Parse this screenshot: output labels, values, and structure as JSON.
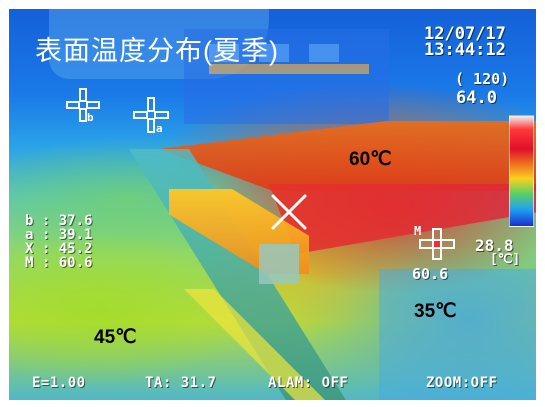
{
  "title": "表面温度分布(夏季)",
  "date": "12/07/17",
  "time": "13:44:12",
  "emissivity_scale": "( 120)",
  "max_temp": "64.0",
  "min_temp": "28.8",
  "unit": "[℃]",
  "m_point_value": "60.6",
  "cursor_labels": {
    "b": "b",
    "a": "a",
    "m": "M"
  },
  "readouts": [
    {
      "label": "b",
      "value": ": 37.6"
    },
    {
      "label": "a",
      "value": ": 39.1"
    },
    {
      "label": "X",
      "value": ": 45.2"
    },
    {
      "label": "M",
      "value": ": 60.6"
    }
  ],
  "status_bar": {
    "emissivity": "E=1.00",
    "ta": "TA: 31.7",
    "alarm": "ALAM: OFF",
    "zoom": "ZOOM:OFF"
  },
  "annotations": {
    "roof": "60℃",
    "road": "35℃",
    "lawn": "45℃"
  },
  "colors": {
    "overlay_text": "#ffffff",
    "annotation_text": "#000000",
    "hot": "#e0282a",
    "warm": "#f8d020",
    "cool": "#20a0f0"
  }
}
